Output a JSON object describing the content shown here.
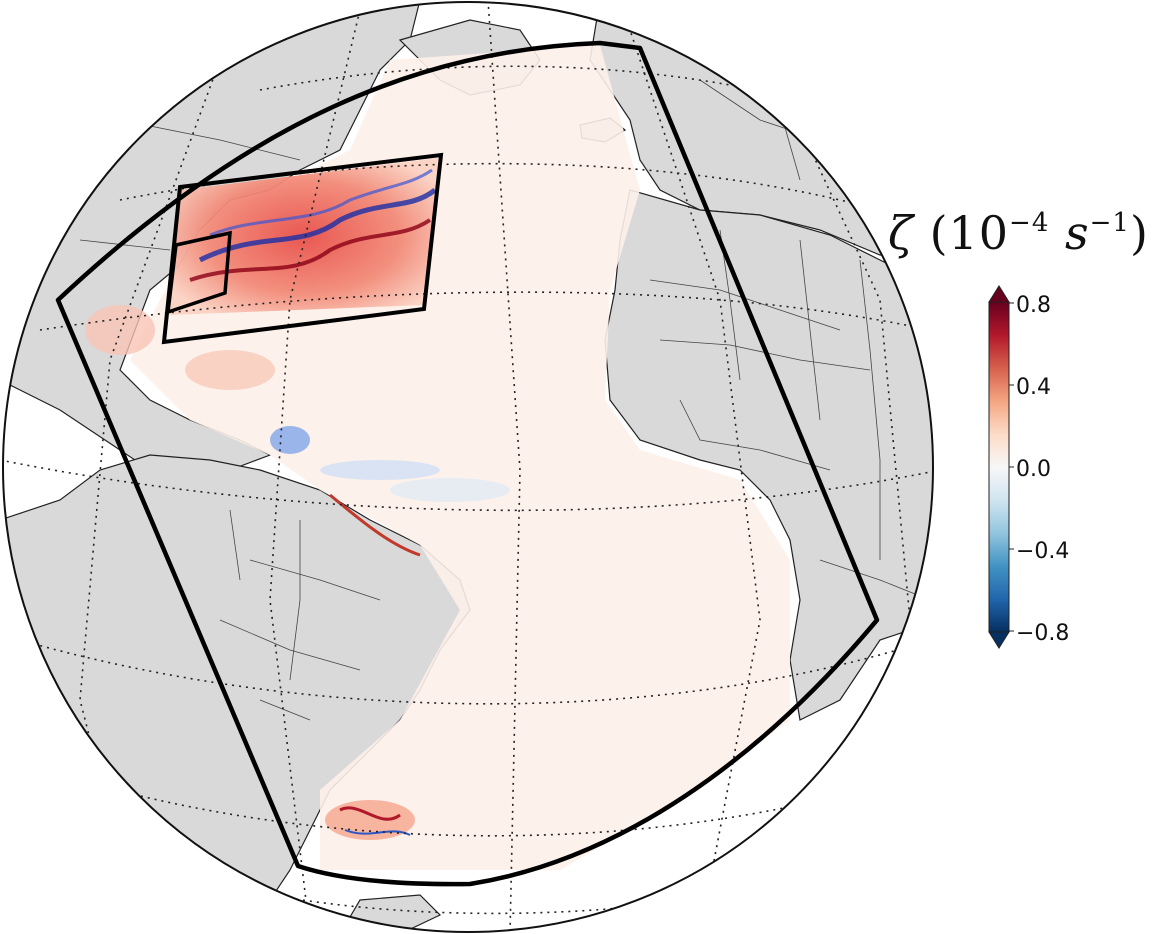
{
  "colorbar": {
    "symbol": "ζ",
    "title_open": "(10",
    "exp1": "−4",
    "unit": "s",
    "exp2": "−1",
    "title_close": ")",
    "ticks": [
      "0.8",
      "0.4",
      "0.0",
      "−0.4",
      "−0.8"
    ],
    "colors": [
      "#67001f",
      "#b2182b",
      "#d6604d",
      "#f4a582",
      "#fddbc7",
      "#f7f7f7",
      "#d1e5f0",
      "#92c5de",
      "#4393c3",
      "#2166ac",
      "#053061"
    ]
  },
  "map": {
    "projection": "orthographic",
    "ocean_color": "#ffffff",
    "land_color": "#d9d9d9",
    "graticule": "dotted",
    "domains": [
      "outer-domain-box",
      "middle-domain-box",
      "inner-domain-box"
    ]
  }
}
